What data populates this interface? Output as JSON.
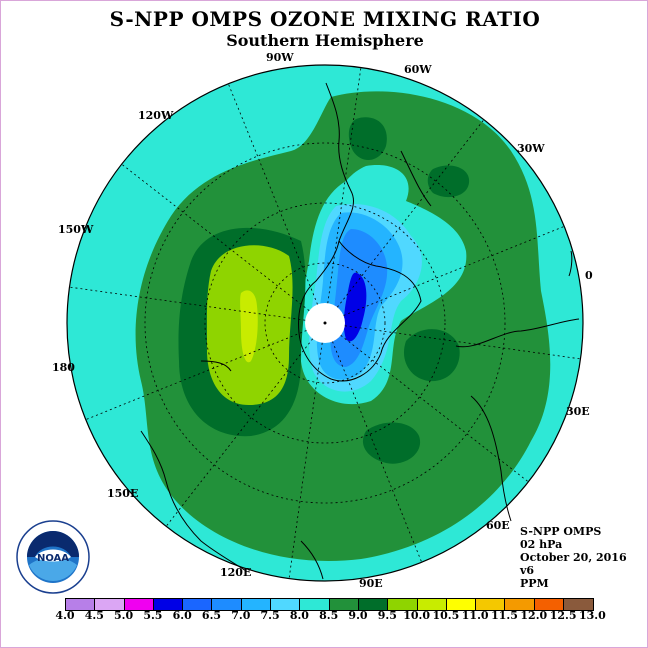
{
  "title": "S-NPP OMPS OZONE MIXING RATIO",
  "subtitle": "Southern Hemisphere",
  "longitude_labels": {
    "w90": "90W",
    "w60": "60W",
    "w30": "30W",
    "w120": "120W",
    "w150": "150W",
    "e0": "0",
    "lon180": "180",
    "e30": "30E",
    "e150": "150E",
    "e60": "60E",
    "e120": "120E",
    "e90": "90E"
  },
  "info": {
    "instrument": "S-NPP OMPS",
    "level": "02 hPa",
    "date": "October 20, 2016",
    "version": "v6",
    "units": "PPM"
  },
  "logo": {
    "text": "NOAA",
    "icon": "noaa-logo"
  },
  "colorbar": {
    "ticks": [
      "4.0",
      "4.5",
      "5.0",
      "5.5",
      "6.0",
      "6.5",
      "7.0",
      "7.5",
      "8.0",
      "8.5",
      "9.0",
      "9.5",
      "10.0",
      "10.5",
      "11.0",
      "11.5",
      "12.0",
      "12.5",
      "13.0"
    ],
    "colors": [
      "#b77fe8",
      "#dba6f4",
      "#f000f0",
      "#0000e6",
      "#1a66ff",
      "#1e8cff",
      "#24b4ff",
      "#50d8ff",
      "#2ee8d6",
      "#22913a",
      "#006e2a",
      "#8fd400",
      "#c8ec00",
      "#ffff00",
      "#f4c800",
      "#f49a00",
      "#f46000",
      "#f00000",
      "#8a5a3c"
    ]
  },
  "chart_data": {
    "type": "heatmap",
    "projection": "south-polar-stereographic",
    "variable": "ozone mixing ratio",
    "units": "PPM",
    "pressure_level": "02 hPa",
    "date": "October 20, 2016",
    "levels": [
      4.0,
      4.5,
      5.0,
      5.5,
      6.0,
      6.5,
      7.0,
      7.5,
      8.0,
      8.5,
      9.0,
      9.5,
      10.0,
      10.5,
      11.0,
      11.5,
      12.0,
      12.5,
      13.0
    ],
    "regions": [
      {
        "range": [
          7.5,
          8.0
        ],
        "where": "outer ring and Antarctic Peninsula to 0 longitude"
      },
      {
        "range": [
          8.0,
          8.5
        ],
        "where": "broad mid-latitude band"
      },
      {
        "range": [
          8.5,
          9.0
        ],
        "where": "patches near 60W, 30W, 30E, 90E"
      },
      {
        "range": [
          9.0,
          9.5
        ],
        "where": "Pacific sector 150W to 180"
      },
      {
        "range": [
          9.5,
          10.0
        ],
        "where": "center of Pacific maximum"
      },
      {
        "range": [
          5.5,
          6.0
        ],
        "where": "minimum over East Antarctica near 0 to 60E"
      }
    ]
  }
}
